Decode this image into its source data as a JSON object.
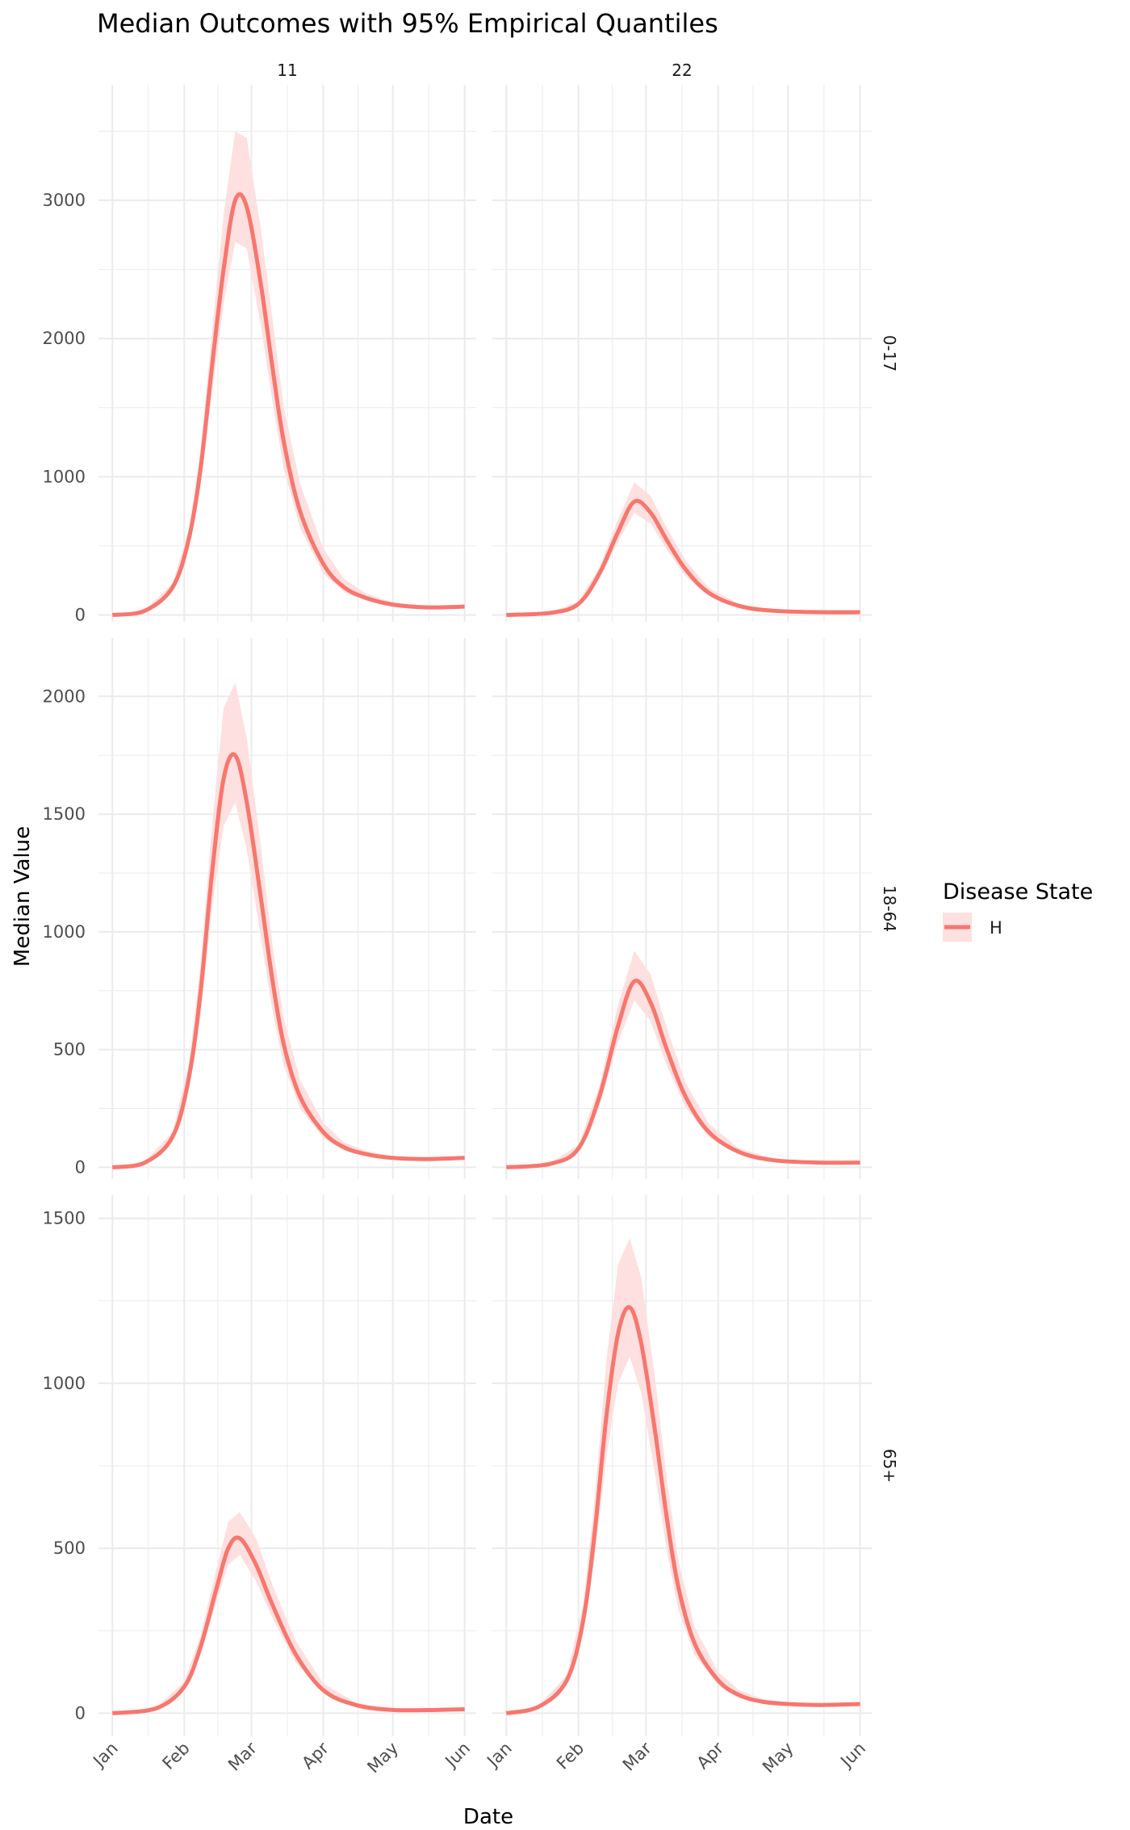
{
  "chart_data": {
    "type": "line",
    "title": "Median Outcomes with 95% Empirical Quantiles",
    "xlabel": "Date",
    "ylabel": "Median Value",
    "x_ticks": [
      "Jan",
      "Feb",
      "Mar",
      "Apr",
      "May",
      "Jun"
    ],
    "x_dates": [
      "2024-01-01",
      "2024-02-01",
      "2024-03-01",
      "2024-04-01",
      "2024-05-01",
      "2024-06-01"
    ],
    "columns": [
      "11",
      "22"
    ],
    "rows": [
      "0-17",
      "18-64",
      "65+"
    ],
    "y_scales": "free per row",
    "grid": true,
    "legend": {
      "title": "Disease State",
      "position": "right",
      "entries": [
        "H"
      ]
    },
    "colors": {
      "line": "#f8766d",
      "band": "#fde0df",
      "grid": "#ebebeb"
    },
    "panels": [
      {
        "row": "0-17",
        "col": "11",
        "ylim": [
          -50,
          3836
        ],
        "y_ticks": [
          0,
          1000,
          2000,
          3000
        ],
        "x": [
          "2024-01-01",
          "2024-01-15",
          "2024-01-27",
          "2024-02-03",
          "2024-02-08",
          "2024-02-13",
          "2024-02-18",
          "2024-02-23",
          "2024-02-28",
          "2024-03-05",
          "2024-03-10",
          "2024-03-15",
          "2024-03-22",
          "2024-04-01",
          "2024-04-10",
          "2024-04-20",
          "2024-05-01",
          "2024-05-15",
          "2024-06-01"
        ],
        "median": [
          0,
          30,
          200,
          550,
          1050,
          1800,
          2500,
          3000,
          2950,
          2400,
          1800,
          1250,
          750,
          370,
          200,
          120,
          75,
          55,
          60
        ],
        "lower": [
          0,
          25,
          170,
          480,
          930,
          1600,
          2250,
          2700,
          2650,
          2100,
          1550,
          1050,
          630,
          300,
          165,
          100,
          65,
          50,
          55
        ],
        "upper": [
          0,
          35,
          230,
          620,
          1180,
          2050,
          2900,
          3500,
          3450,
          2800,
          2150,
          1500,
          950,
          480,
          260,
          150,
          90,
          65,
          70
        ]
      },
      {
        "row": "0-17",
        "col": "22",
        "ylim": [
          -50,
          3836
        ],
        "y_ticks": [
          0,
          1000,
          2000,
          3000
        ],
        "x": [
          "2024-01-01",
          "2024-01-20",
          "2024-02-01",
          "2024-02-10",
          "2024-02-18",
          "2024-02-25",
          "2024-03-03",
          "2024-03-10",
          "2024-03-18",
          "2024-03-28",
          "2024-04-10",
          "2024-04-25",
          "2024-05-15",
          "2024-06-01"
        ],
        "median": [
          0,
          15,
          80,
          300,
          600,
          820,
          740,
          540,
          330,
          160,
          65,
          30,
          20,
          20
        ],
        "lower": [
          0,
          12,
          70,
          260,
          530,
          740,
          660,
          470,
          280,
          135,
          55,
          25,
          18,
          18
        ],
        "upper": [
          0,
          18,
          95,
          345,
          690,
          960,
          860,
          630,
          395,
          195,
          80,
          38,
          24,
          24
        ]
      },
      {
        "row": "18-64",
        "col": "11",
        "ylim": [
          -50,
          2248
        ],
        "y_ticks": [
          0,
          500,
          1000,
          1500,
          2000
        ],
        "x": [
          "2024-01-01",
          "2024-01-15",
          "2024-01-27",
          "2024-02-03",
          "2024-02-08",
          "2024-02-13",
          "2024-02-18",
          "2024-02-23",
          "2024-02-28",
          "2024-03-05",
          "2024-03-10",
          "2024-03-15",
          "2024-03-22",
          "2024-04-01",
          "2024-04-10",
          "2024-04-20",
          "2024-05-01",
          "2024-05-15",
          "2024-06-01"
        ],
        "median": [
          0,
          20,
          130,
          380,
          740,
          1250,
          1650,
          1750,
          1550,
          1150,
          800,
          520,
          300,
          150,
          85,
          55,
          40,
          35,
          40
        ],
        "lower": [
          0,
          17,
          110,
          330,
          640,
          1100,
          1450,
          1550,
          1350,
          980,
          670,
          430,
          250,
          125,
          70,
          45,
          35,
          32,
          36
        ],
        "upper": [
          0,
          24,
          150,
          440,
          850,
          1450,
          1950,
          2060,
          1820,
          1370,
          950,
          630,
          370,
          190,
          105,
          68,
          47,
          40,
          46
        ]
      },
      {
        "row": "18-64",
        "col": "22",
        "ylim": [
          -50,
          2248
        ],
        "y_ticks": [
          0,
          500,
          1000,
          1500,
          2000
        ],
        "x": [
          "2024-01-01",
          "2024-01-20",
          "2024-02-01",
          "2024-02-10",
          "2024-02-18",
          "2024-02-25",
          "2024-03-03",
          "2024-03-10",
          "2024-03-18",
          "2024-03-28",
          "2024-04-10",
          "2024-04-25",
          "2024-05-15",
          "2024-06-01"
        ],
        "median": [
          0,
          15,
          80,
          300,
          600,
          790,
          700,
          500,
          300,
          150,
          65,
          30,
          20,
          20
        ],
        "lower": [
          0,
          12,
          70,
          260,
          530,
          710,
          620,
          430,
          255,
          128,
          55,
          26,
          18,
          18
        ],
        "upper": [
          0,
          18,
          95,
          345,
          690,
          920,
          820,
          590,
          360,
          185,
          80,
          37,
          24,
          24
        ]
      },
      {
        "row": "65+",
        "col": "11",
        "ylim": [
          -70,
          1570
        ],
        "y_ticks": [
          0,
          500,
          1000,
          1500
        ],
        "x": [
          "2024-01-01",
          "2024-01-20",
          "2024-02-01",
          "2024-02-08",
          "2024-02-15",
          "2024-02-20",
          "2024-02-25",
          "2024-03-03",
          "2024-03-10",
          "2024-03-20",
          "2024-04-01",
          "2024-04-15",
          "2024-05-01",
          "2024-05-20",
          "2024-06-01"
        ],
        "median": [
          0,
          15,
          80,
          200,
          380,
          500,
          530,
          450,
          330,
          180,
          70,
          25,
          10,
          10,
          12
        ],
        "lower": [
          0,
          12,
          70,
          175,
          340,
          450,
          480,
          400,
          290,
          155,
          60,
          20,
          8,
          8,
          10
        ],
        "upper": [
          0,
          18,
          95,
          235,
          440,
          580,
          610,
          530,
          390,
          220,
          90,
          32,
          13,
          13,
          15
        ]
      },
      {
        "row": "65+",
        "col": "22",
        "ylim": [
          -70,
          1570
        ],
        "y_ticks": [
          0,
          500,
          1000,
          1500
        ],
        "x": [
          "2024-01-01",
          "2024-01-15",
          "2024-01-27",
          "2024-02-03",
          "2024-02-08",
          "2024-02-13",
          "2024-02-18",
          "2024-02-23",
          "2024-02-28",
          "2024-03-05",
          "2024-03-10",
          "2024-03-15",
          "2024-03-22",
          "2024-04-01",
          "2024-04-10",
          "2024-04-20",
          "2024-05-01",
          "2024-05-15",
          "2024-06-01"
        ],
        "median": [
          0,
          20,
          100,
          280,
          550,
          900,
          1150,
          1230,
          1120,
          850,
          590,
          380,
          210,
          100,
          55,
          35,
          28,
          25,
          28
        ],
        "lower": [
          0,
          17,
          85,
          240,
          470,
          780,
          1000,
          1080,
          970,
          720,
          490,
          310,
          175,
          85,
          46,
          30,
          24,
          22,
          25
        ],
        "upper": [
          0,
          24,
          115,
          330,
          650,
          1070,
          1360,
          1440,
          1320,
          1010,
          710,
          460,
          260,
          125,
          70,
          43,
          33,
          28,
          32
        ]
      }
    ]
  }
}
